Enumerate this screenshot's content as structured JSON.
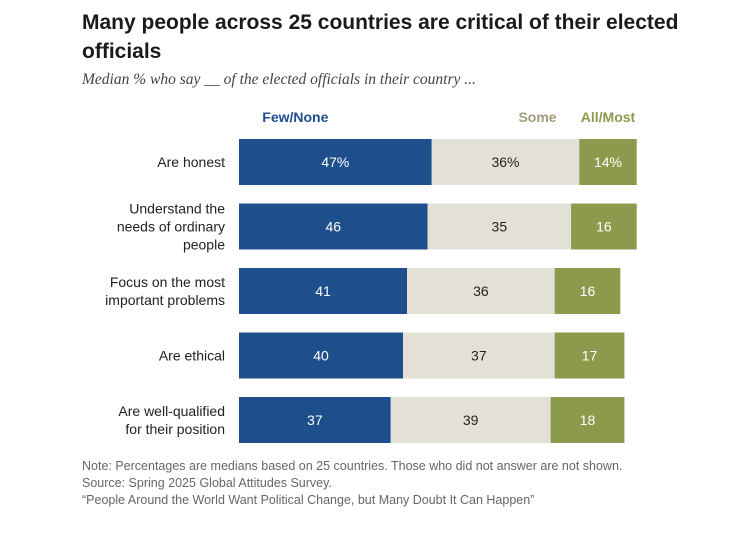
{
  "title": "Many people across 25 countries are critical of their elected officials",
  "subtitle": "Median % who say __ of the elected officials in their country ...",
  "colors": {
    "few_none": "#1f4e8c",
    "some": "#e3e0d6",
    "all_most": "#8c9a4e"
  },
  "chart_data": {
    "type": "bar",
    "orientation": "horizontal",
    "stacked": true,
    "categories": [
      "Are honest",
      "Understand the needs of ordinary people",
      "Focus on the most important problems",
      "Are ethical",
      "Are well-qualified for their position"
    ],
    "category_lines": [
      [
        "Are honest"
      ],
      [
        "Understand the",
        "needs of ordinary",
        "people"
      ],
      [
        "Focus on the most",
        "important problems"
      ],
      [
        "Are ethical"
      ],
      [
        "Are well-qualified",
        "for their position"
      ]
    ],
    "series": [
      {
        "name": "Few/None",
        "values": [
          47,
          46,
          41,
          40,
          37
        ],
        "labels": [
          "47%",
          "46",
          "41",
          "40",
          "37"
        ]
      },
      {
        "name": "Some",
        "values": [
          36,
          35,
          36,
          37,
          39
        ],
        "labels": [
          "36%",
          "35",
          "36",
          "37",
          "39"
        ]
      },
      {
        "name": "All/Most",
        "values": [
          14,
          16,
          16,
          17,
          18
        ],
        "labels": [
          "14%",
          "16",
          "16",
          "17",
          "18"
        ]
      }
    ],
    "legend_placement": "top",
    "grid": false
  },
  "note": {
    "line1": "Note: Percentages are medians based on 25 countries. Those who did not answer are not shown.",
    "source": "Source: Spring 2025 Global Attitudes Survey.",
    "report": "“People Around the World Want Political Change, but Many Doubt It Can Happen”"
  }
}
